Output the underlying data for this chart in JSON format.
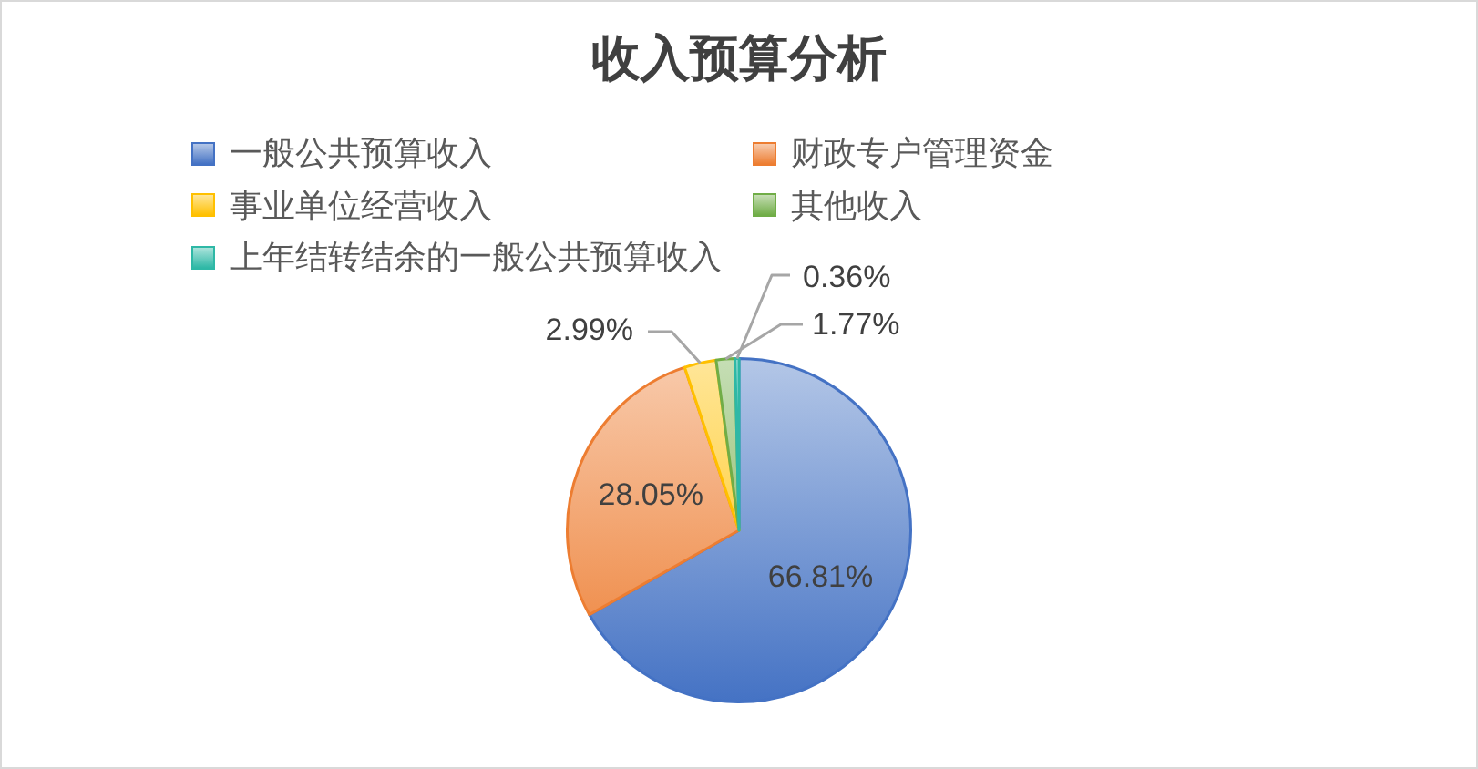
{
  "chart_data": {
    "type": "pie",
    "title": "收入预算分析",
    "categories": [
      "一般公共预算收入",
      "财政专户管理资金",
      "事业单位经营收入",
      "其他收入",
      "上年结转结余的一般公共预算收入"
    ],
    "values": [
      66.81,
      28.05,
      2.99,
      1.77,
      0.36
    ],
    "colors": [
      "#4472c4",
      "#ed7d31",
      "#ffc000",
      "#70ad47",
      "#2eb8a6"
    ],
    "value_labels": [
      "66.81%",
      "28.05%",
      "2.99%",
      "1.77%",
      "0.36%"
    ],
    "legend": "top"
  }
}
